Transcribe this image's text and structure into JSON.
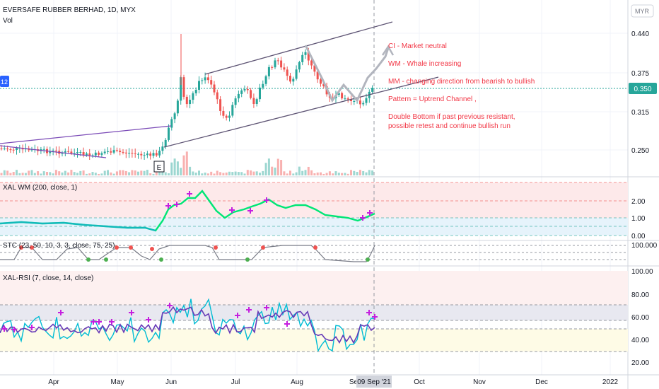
{
  "header": {
    "symbol_line": "EVERSAFE RUBBER BERHAD, 1D, MYX",
    "volume_label": "Vol",
    "currency": "MYR",
    "left_badge": "12"
  },
  "price_axis": {
    "ticks": [
      "0.440",
      "0.375",
      "0.315",
      "0.250"
    ],
    "current_price": "0.350"
  },
  "pane_wm": {
    "title": "XAL WM (200, close, 1)",
    "ticks": [
      "2.00",
      "1.00",
      "0.00"
    ]
  },
  "pane_stc": {
    "title": "STC (23, 50, 10, 3, 3, close, 75, 25)",
    "ticks": [
      "100.000"
    ]
  },
  "pane_rsi": {
    "title": "XAL-RSI (7, close, 14, close)",
    "ticks": [
      "100.00",
      "80.00",
      "60.00",
      "40.00",
      "20.00"
    ]
  },
  "time_axis": {
    "months": [
      "Apr",
      "May",
      "Jun",
      "Jul",
      "Aug",
      "Se",
      "Oct",
      "Nov",
      "Dec",
      "2022"
    ],
    "cursor_date": "09 Sep '21"
  },
  "annotations": {
    "ci": "CI - Market neutral",
    "wm": "WM - Whale increasing",
    "mm": "MM - changing direction from bearish to bullish",
    "pattern": "Pattern = Uptrend Channel ,",
    "double_bottom_1": "Double Bottom if past previous resistant,",
    "double_bottom_2": "possible retest and continue bullish run",
    "event_marker": "E"
  },
  "colors": {
    "up": "#26a69a",
    "down": "#ef5350",
    "wm_line": "#00e676",
    "wm_low": "#2196f3",
    "trendline": "#7b4bb7",
    "annotation_text": "#f23645",
    "rsi_fast": "#00bcd4",
    "rsi_slow": "#673ab7",
    "cross_marker": "#c51fdf"
  }
}
